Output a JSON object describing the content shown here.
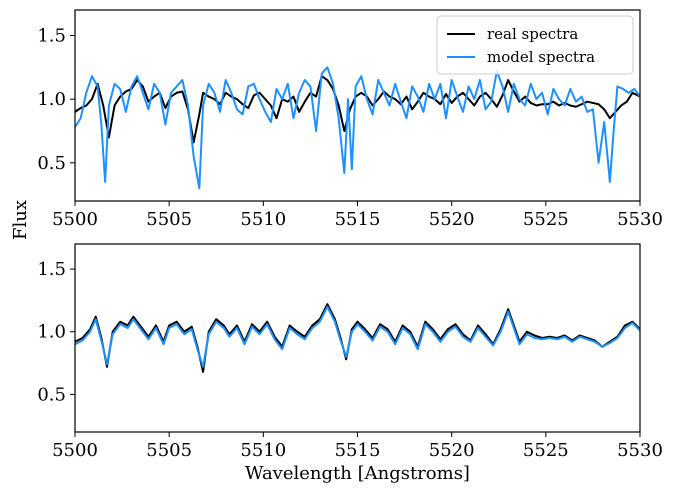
{
  "chart_data": [
    {
      "type": "line",
      "title": "",
      "xlabel": "",
      "ylabel": "",
      "xlim": [
        5500,
        5530
      ],
      "ylim": [
        0.2,
        1.7
      ],
      "xticks": [
        5500,
        5505,
        5510,
        5515,
        5520,
        5525,
        5530
      ],
      "yticks": [
        0.5,
        1.0,
        1.5
      ],
      "grid": false,
      "legend": {
        "placement": "top-right",
        "entries": [
          "real spectra",
          "model spectra"
        ]
      },
      "series": [
        {
          "name": "real spectra",
          "color": "#000000",
          "x": [
            5500,
            5500.3,
            5500.6,
            5500.9,
            5501.2,
            5501.5,
            5501.8,
            5502.1,
            5502.4,
            5502.7,
            5503,
            5503.3,
            5503.6,
            5503.9,
            5504.2,
            5504.5,
            5504.8,
            5505.1,
            5505.4,
            5505.7,
            5506,
            5506.3,
            5506.6,
            5506.8,
            5507.1,
            5507.4,
            5507.7,
            5508,
            5508.3,
            5508.6,
            5508.9,
            5509.2,
            5509.5,
            5509.8,
            5510.1,
            5510.4,
            5510.7,
            5511,
            5511.3,
            5511.6,
            5511.9,
            5512.2,
            5512.5,
            5512.8,
            5513.1,
            5513.4,
            5513.7,
            5514,
            5514.3,
            5514.6,
            5514.9,
            5515.2,
            5515.5,
            5515.8,
            5516.1,
            5516.4,
            5516.7,
            5517,
            5517.3,
            5517.6,
            5517.9,
            5518.2,
            5518.5,
            5518.8,
            5519.1,
            5519.4,
            5519.7,
            5520,
            5520.3,
            5520.6,
            5520.9,
            5521.2,
            5521.5,
            5521.8,
            5522.1,
            5522.4,
            5522.7,
            5523,
            5523.3,
            5523.6,
            5523.9,
            5524.2,
            5524.5,
            5524.8,
            5525.1,
            5525.4,
            5525.7,
            5526,
            5526.3,
            5526.6,
            5526.9,
            5527.2,
            5527.5,
            5527.8,
            5528.1,
            5528.4,
            5528.7,
            5529,
            5529.3,
            5529.6,
            5530
          ],
          "y": [
            0.9,
            0.93,
            0.95,
            1.0,
            1.12,
            0.95,
            0.7,
            0.95,
            1.02,
            1.06,
            1.08,
            1.15,
            1.1,
            0.98,
            1.02,
            1.05,
            0.93,
            1.02,
            1.05,
            1.06,
            0.92,
            0.66,
            0.88,
            1.05,
            1.02,
            1.0,
            0.96,
            1.05,
            1.02,
            1.0,
            0.96,
            0.93,
            1.03,
            1.05,
            1.0,
            0.95,
            0.85,
            1.0,
            0.98,
            1.02,
            0.9,
            0.98,
            1.05,
            1.02,
            1.18,
            1.15,
            1.08,
            0.95,
            0.75,
            0.92,
            1.02,
            1.05,
            1.02,
            0.95,
            1.0,
            1.06,
            1.02,
            1.0,
            0.96,
            1.02,
            0.92,
            0.98,
            1.05,
            1.02,
            1.0,
            0.96,
            1.04,
            0.97,
            1.02,
            1.05,
            1.0,
            0.95,
            1.02,
            1.05,
            1.0,
            0.94,
            1.03,
            1.15,
            1.06,
            0.98,
            1.02,
            0.97,
            0.95,
            0.96,
            0.96,
            0.98,
            0.95,
            0.97,
            0.95,
            0.94,
            0.96,
            0.98,
            0.97,
            0.96,
            0.92,
            0.85,
            0.9,
            0.95,
            0.98,
            1.05,
            1.02
          ]
        },
        {
          "name": "model spectra",
          "color": "#1e90ff",
          "x": [
            5500,
            5500.3,
            5500.6,
            5500.9,
            5501.2,
            5501.4,
            5501.6,
            5501.8,
            5502.1,
            5502.4,
            5502.7,
            5503,
            5503.3,
            5503.6,
            5503.9,
            5504.2,
            5504.5,
            5504.8,
            5505.1,
            5505.4,
            5505.7,
            5506,
            5506.3,
            5506.6,
            5506.8,
            5507.1,
            5507.4,
            5507.7,
            5508,
            5508.3,
            5508.6,
            5508.9,
            5509.2,
            5509.5,
            5509.8,
            5510.1,
            5510.4,
            5510.7,
            5511,
            5511.3,
            5511.6,
            5511.9,
            5512.2,
            5512.5,
            5512.8,
            5513.1,
            5513.4,
            5513.7,
            5514,
            5514.3,
            5514.5,
            5514.7,
            5514.9,
            5515.2,
            5515.5,
            5515.8,
            5516.1,
            5516.4,
            5516.7,
            5517,
            5517.3,
            5517.6,
            5517.9,
            5518.2,
            5518.5,
            5518.8,
            5519.1,
            5519.4,
            5519.7,
            5520,
            5520.3,
            5520.6,
            5520.9,
            5521.2,
            5521.5,
            5521.8,
            5522.1,
            5522.4,
            5522.7,
            5523,
            5523.3,
            5523.6,
            5523.9,
            5524.2,
            5524.5,
            5524.8,
            5525.1,
            5525.4,
            5525.7,
            5526,
            5526.3,
            5526.6,
            5526.9,
            5527.2,
            5527.5,
            5527.8,
            5528.1,
            5528.4,
            5528.6,
            5528.8,
            5529.1,
            5529.4,
            5529.7,
            5530
          ],
          "y": [
            0.78,
            0.85,
            1.05,
            1.18,
            1.1,
            0.8,
            0.35,
            0.95,
            1.12,
            1.08,
            0.9,
            1.1,
            1.18,
            1.05,
            0.92,
            1.12,
            1.05,
            0.8,
            1.05,
            1.1,
            1.15,
            0.95,
            0.55,
            0.3,
            0.95,
            1.12,
            1.05,
            0.9,
            1.15,
            1.05,
            0.92,
            0.88,
            1.1,
            1.12,
            1.0,
            0.9,
            0.82,
            1.08,
            1.0,
            1.12,
            0.85,
            1.05,
            1.15,
            1.1,
            0.75,
            1.2,
            1.25,
            1.12,
            0.85,
            0.42,
            1.0,
            0.45,
            1.1,
            1.18,
            1.0,
            0.88,
            1.15,
            1.05,
            0.95,
            1.12,
            0.98,
            0.85,
            1.1,
            1.02,
            0.9,
            1.12,
            1.0,
            1.12,
            0.85,
            1.15,
            1.02,
            0.9,
            1.1,
            1.0,
            1.15,
            0.92,
            0.98,
            1.22,
            1.1,
            0.9,
            1.12,
            1.0,
            0.95,
            1.12,
            1.0,
            1.05,
            0.88,
            1.08,
            1.0,
            0.95,
            1.08,
            0.98,
            1.02,
            0.9,
            0.92,
            0.5,
            0.82,
            0.35,
            0.75,
            1.1,
            1.08,
            1.05,
            1.08,
            1.02
          ]
        }
      ]
    },
    {
      "type": "line",
      "title": "",
      "xlabel": "Wavelength [Angstroms]",
      "ylabel": "",
      "xlim": [
        5500,
        5530
      ],
      "ylim": [
        0.2,
        1.7
      ],
      "xticks": [
        5500,
        5505,
        5510,
        5515,
        5520,
        5525,
        5530
      ],
      "yticks": [
        0.5,
        1.0,
        1.5
      ],
      "grid": false,
      "series": [
        {
          "name": "real spectra",
          "color": "#000000",
          "x": [
            5500,
            5500.4,
            5500.8,
            5501.1,
            5501.4,
            5501.7,
            5502,
            5502.4,
            5502.8,
            5503.1,
            5503.5,
            5503.9,
            5504.3,
            5504.7,
            5505,
            5505.4,
            5505.8,
            5506.2,
            5506.5,
            5506.8,
            5507.1,
            5507.5,
            5507.9,
            5508.2,
            5508.6,
            5509,
            5509.4,
            5509.8,
            5510.2,
            5510.6,
            5511,
            5511.4,
            5511.8,
            5512.2,
            5512.6,
            5513,
            5513.4,
            5513.8,
            5514.1,
            5514.4,
            5514.7,
            5515,
            5515.4,
            5515.8,
            5516.2,
            5516.6,
            5517,
            5517.4,
            5517.8,
            5518.2,
            5518.6,
            5519,
            5519.4,
            5519.8,
            5520.2,
            5520.6,
            5521,
            5521.4,
            5521.8,
            5522.2,
            5522.6,
            5523,
            5523.3,
            5523.6,
            5524,
            5524.4,
            5524.8,
            5525.2,
            5525.6,
            5526,
            5526.4,
            5526.8,
            5527.2,
            5527.6,
            5528,
            5528.4,
            5528.8,
            5529.2,
            5529.6,
            5530
          ],
          "y": [
            0.92,
            0.95,
            1.02,
            1.12,
            0.95,
            0.72,
            1.0,
            1.08,
            1.05,
            1.12,
            1.04,
            0.96,
            1.05,
            0.92,
            1.05,
            1.08,
            1.0,
            1.04,
            0.88,
            0.68,
            1.0,
            1.1,
            1.05,
            0.98,
            1.05,
            0.92,
            1.06,
            1.0,
            1.08,
            0.96,
            0.88,
            1.05,
            1.0,
            0.96,
            1.05,
            1.1,
            1.22,
            1.1,
            0.95,
            0.78,
            1.02,
            1.08,
            1.02,
            0.95,
            1.06,
            1.02,
            0.92,
            1.05,
            1.0,
            0.88,
            1.08,
            1.02,
            0.94,
            1.02,
            1.06,
            0.98,
            0.93,
            1.05,
            0.98,
            0.9,
            1.02,
            1.18,
            1.05,
            0.92,
            1.0,
            0.97,
            0.95,
            0.96,
            0.95,
            0.97,
            0.93,
            0.97,
            0.95,
            0.93,
            0.88,
            0.92,
            0.96,
            1.05,
            1.08,
            1.02
          ]
        },
        {
          "name": "model spectra",
          "color": "#1e90ff",
          "x": [
            5500,
            5500.4,
            5500.8,
            5501.1,
            5501.4,
            5501.7,
            5502,
            5502.4,
            5502.8,
            5503.1,
            5503.5,
            5503.9,
            5504.3,
            5504.7,
            5505,
            5505.4,
            5505.8,
            5506.2,
            5506.5,
            5506.8,
            5507.1,
            5507.5,
            5507.9,
            5508.2,
            5508.6,
            5509,
            5509.4,
            5509.8,
            5510.2,
            5510.6,
            5511,
            5511.4,
            5511.8,
            5512.2,
            5512.6,
            5513,
            5513.4,
            5513.8,
            5514.1,
            5514.4,
            5514.7,
            5515,
            5515.4,
            5515.8,
            5516.2,
            5516.6,
            5517,
            5517.4,
            5517.8,
            5518.2,
            5518.6,
            5519,
            5519.4,
            5519.8,
            5520.2,
            5520.6,
            5521,
            5521.4,
            5521.8,
            5522.2,
            5522.6,
            5523,
            5523.3,
            5523.6,
            5524,
            5524.4,
            5524.8,
            5525.2,
            5525.6,
            5526,
            5526.4,
            5526.8,
            5527.2,
            5527.6,
            5528,
            5528.4,
            5528.8,
            5529.2,
            5529.6,
            5530
          ],
          "y": [
            0.9,
            0.93,
            1.0,
            1.1,
            0.93,
            0.74,
            0.98,
            1.06,
            1.03,
            1.1,
            1.02,
            0.94,
            1.03,
            0.9,
            1.03,
            1.06,
            0.98,
            1.02,
            0.86,
            0.72,
            0.98,
            1.08,
            1.03,
            0.96,
            1.03,
            0.9,
            1.04,
            0.98,
            1.06,
            0.94,
            0.86,
            1.03,
            0.98,
            0.94,
            1.03,
            1.08,
            1.2,
            1.08,
            0.93,
            0.8,
            1.0,
            1.06,
            1.0,
            0.93,
            1.04,
            1.0,
            0.9,
            1.03,
            0.98,
            0.86,
            1.06,
            1.0,
            0.92,
            1.0,
            1.04,
            0.96,
            0.92,
            1.03,
            0.96,
            0.89,
            1.0,
            1.16,
            1.03,
            0.9,
            0.98,
            0.95,
            0.94,
            0.95,
            0.94,
            0.96,
            0.92,
            0.96,
            0.94,
            0.92,
            0.88,
            0.91,
            0.95,
            1.03,
            1.07,
            1.01
          ]
        }
      ]
    }
  ],
  "figure": {
    "shared_ylabel": "Flux"
  }
}
